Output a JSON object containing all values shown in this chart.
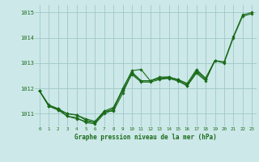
{
  "title": "Graphe pression niveau de la mer (hPa)",
  "bg_color": "#cce8e8",
  "grid_color": "#a0c8c8",
  "line_color": "#1a6b1a",
  "marker_color": "#1a6b1a",
  "xlim": [
    -0.5,
    23.5
  ],
  "ylim": [
    1010.5,
    1015.3
  ],
  "xticks": [
    0,
    1,
    2,
    3,
    4,
    5,
    6,
    7,
    8,
    9,
    10,
    11,
    12,
    13,
    14,
    15,
    16,
    17,
    18,
    19,
    20,
    21,
    22,
    23
  ],
  "yticks": [
    1011,
    1012,
    1013,
    1014,
    1015
  ],
  "series": [
    [
      1011.9,
      1011.3,
      1011.2,
      1010.9,
      1010.8,
      1010.7,
      1010.65,
      1011.1,
      1011.1,
      1011.8,
      1012.6,
      1012.3,
      1012.3,
      1012.4,
      1012.4,
      1012.3,
      1012.1,
      1012.7,
      1012.4,
      1013.1,
      1013.0,
      1014.0,
      1014.85,
      1014.95
    ],
    [
      1011.9,
      1011.3,
      1011.15,
      1010.9,
      1010.85,
      1010.65,
      1010.6,
      1011.0,
      1011.15,
      1012.0,
      1012.65,
      1012.3,
      1012.3,
      1012.4,
      1012.45,
      1012.35,
      1012.15,
      1012.65,
      1012.35,
      1013.1,
      null,
      null,
      null,
      null
    ],
    [
      1011.9,
      1011.3,
      1011.15,
      1011.0,
      1010.95,
      1010.75,
      1010.65,
      1011.05,
      1011.2,
      1011.9,
      1012.55,
      1012.25,
      1012.25,
      1012.35,
      1012.4,
      1012.3,
      1012.1,
      1012.6,
      1012.3,
      1013.1,
      null,
      null,
      null,
      null
    ],
    [
      1011.9,
      1011.35,
      1011.2,
      1011.0,
      1010.95,
      1010.8,
      1010.7,
      1011.1,
      1011.25,
      1011.95,
      1012.7,
      1012.75,
      1012.3,
      1012.45,
      1012.45,
      1012.35,
      1012.2,
      1012.75,
      1012.4,
      1013.1,
      1013.05,
      1014.05,
      1014.9,
      1015.0
    ]
  ]
}
